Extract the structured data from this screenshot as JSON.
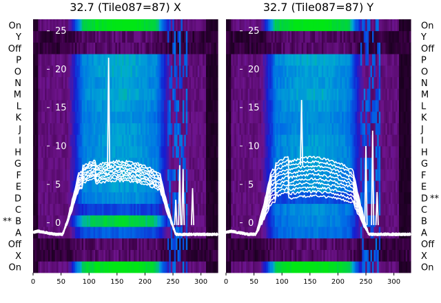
{
  "panels": [
    {
      "title": "32.7 (Tile087=87) X",
      "marked_row": "B"
    },
    {
      "title": "32.7 (Tile087=87) Y",
      "marked_row": "D"
    }
  ],
  "row_labels": [
    "On",
    "X",
    "Off",
    "A",
    "B",
    "C",
    "D",
    "E",
    "F",
    "G",
    "H",
    "I",
    "J",
    "K",
    "L",
    "M",
    "N",
    "O",
    "P",
    "Off",
    "Y",
    "On"
  ],
  "marker_text": "**",
  "x_ticks": [
    0,
    50,
    100,
    150,
    200,
    250,
    300
  ],
  "y_ticks": [
    0,
    5,
    10,
    15,
    20,
    25
  ],
  "colors": {
    "waterfall_low": "#1a0022",
    "waterfall_mid": "#0066ff",
    "waterfall_high": "#00cc33",
    "spectrum": "#ffffff",
    "accent": "#7a1e9a"
  },
  "chart_data": [
    {
      "type": "heatmap",
      "title": "32.7 (Tile087=87) X",
      "xlim": [
        0,
        330
      ],
      "ylim": [
        -6.5,
        26.5
      ],
      "grid": false,
      "x_ticks": [
        0,
        50,
        100,
        150,
        200,
        250,
        300
      ],
      "y_ticks": [
        0,
        5,
        10,
        15,
        20,
        25
      ],
      "rows": [
        "On",
        "X",
        "Off",
        "A",
        "B",
        "C",
        "D",
        "E",
        "F",
        "G",
        "H",
        "I",
        "J",
        "K",
        "L",
        "M",
        "N",
        "O",
        "P",
        "Off",
        "Y",
        "On"
      ],
      "row_intensity": [
        1.0,
        0.05,
        0.0,
        0.25,
        0.85,
        0.15,
        0.45,
        0.5,
        0.5,
        0.5,
        0.5,
        0.5,
        0.5,
        0.45,
        0.5,
        0.55,
        0.5,
        0.55,
        0.55,
        0.0,
        0.05,
        1.0
      ],
      "passband": [
        75,
        235
      ],
      "spectra_overlay": {
        "type": "line",
        "count": 10,
        "x_range": [
          0,
          330
        ],
        "baseline": -1.5,
        "peak_level_range": [
          5.5,
          8
        ],
        "narrow_spikes": [
          {
            "x": 135,
            "y": 21.5
          },
          {
            "x": 255,
            "y": 3
          },
          {
            "x": 262,
            "y": 7.5
          },
          {
            "x": 268,
            "y": 7
          },
          {
            "x": 285,
            "y": 4.5
          }
        ]
      }
    },
    {
      "type": "heatmap",
      "title": "32.7 (Tile087=87) Y",
      "xlim": [
        0,
        330
      ],
      "ylim": [
        -6.5,
        26.5
      ],
      "grid": false,
      "x_ticks": [
        0,
        50,
        100,
        150,
        200,
        250,
        300
      ],
      "y_ticks": [
        0,
        5,
        10,
        15,
        20,
        25
      ],
      "rows": [
        "On",
        "X",
        "Off",
        "A",
        "B",
        "C",
        "D",
        "E",
        "F",
        "G",
        "H",
        "I",
        "J",
        "K",
        "L",
        "M",
        "N",
        "O",
        "P",
        "Off",
        "Y",
        "On"
      ],
      "row_intensity": [
        1.0,
        0.05,
        0.0,
        0.35,
        0.4,
        0.45,
        0.2,
        0.45,
        0.45,
        0.5,
        0.5,
        0.5,
        0.45,
        0.45,
        0.5,
        0.55,
        0.5,
        0.5,
        0.55,
        0.0,
        0.05,
        1.0
      ],
      "passband": [
        75,
        235
      ],
      "spectra_overlay": {
        "type": "line",
        "count": 10,
        "x_range": [
          0,
          330
        ],
        "baseline": -1.5,
        "peak_level_range": [
          3.5,
          8.5
        ],
        "narrow_spikes": [
          {
            "x": 135,
            "y": 16
          },
          {
            "x": 250,
            "y": 10
          },
          {
            "x": 262,
            "y": 12
          },
          {
            "x": 270,
            "y": 4
          }
        ]
      }
    }
  ]
}
